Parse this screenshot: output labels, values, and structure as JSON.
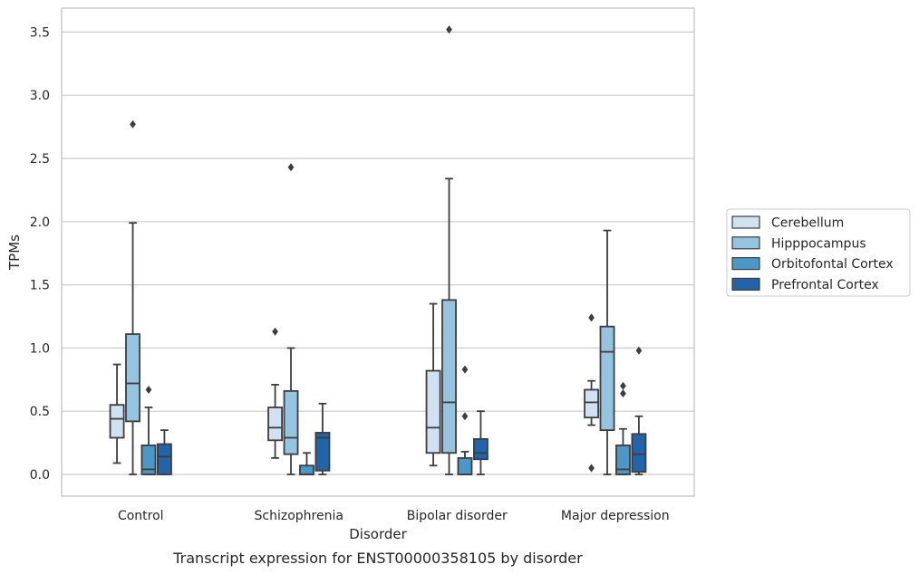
{
  "chart_data": {
    "type": "box",
    "xlabel": "Disorder",
    "ylabel": "TPMs",
    "caption": "Transcript expression for ENST00000358105 by disorder",
    "ylim": [
      -0.17,
      3.7
    ],
    "yticks": [
      "0.0",
      "0.5",
      "1.0",
      "1.5",
      "2.0",
      "2.5",
      "3.0",
      "3.5"
    ],
    "grid": "horizontal",
    "legend_position": "right",
    "categories": [
      "Control",
      "Schizophrenia",
      "Bipolar disorder",
      "Major depression"
    ],
    "series": [
      {
        "name": "Cerebellum",
        "color": "#d0e1f2",
        "boxes": [
          {
            "whislo": 0.09,
            "q1": 0.29,
            "med": 0.44,
            "q3": 0.55,
            "whishi": 0.87,
            "fliers": []
          },
          {
            "whislo": 0.13,
            "q1": 0.27,
            "med": 0.37,
            "q3": 0.53,
            "whishi": 0.71,
            "fliers": [
              1.13
            ]
          },
          {
            "whislo": 0.07,
            "q1": 0.17,
            "med": 0.37,
            "q3": 0.82,
            "whishi": 1.35,
            "fliers": []
          },
          {
            "whislo": 0.39,
            "q1": 0.45,
            "med": 0.57,
            "q3": 0.67,
            "whishi": 0.74,
            "fliers": [
              1.24,
              0.05
            ]
          }
        ]
      },
      {
        "name": "Hipppocampus",
        "color": "#94c4df",
        "boxes": [
          {
            "whislo": 0.0,
            "q1": 0.42,
            "med": 0.72,
            "q3": 1.11,
            "whishi": 1.99,
            "fliers": [
              2.77
            ]
          },
          {
            "whislo": 0.0,
            "q1": 0.16,
            "med": 0.29,
            "q3": 0.66,
            "whishi": 1.0,
            "fliers": [
              2.43
            ]
          },
          {
            "whislo": 0.0,
            "q1": 0.17,
            "med": 0.57,
            "q3": 1.38,
            "whishi": 2.34,
            "fliers": [
              3.52
            ]
          },
          {
            "whislo": 0.0,
            "q1": 0.35,
            "med": 0.97,
            "q3": 1.17,
            "whishi": 1.93,
            "fliers": []
          }
        ]
      },
      {
        "name": "Orbitofontal Cortex",
        "color": "#4a98c9",
        "boxes": [
          {
            "whislo": 0.0,
            "q1": 0.0,
            "med": 0.04,
            "q3": 0.23,
            "whishi": 0.53,
            "fliers": [
              0.67
            ]
          },
          {
            "whislo": 0.0,
            "q1": 0.0,
            "med": 0.0,
            "q3": 0.07,
            "whishi": 0.17,
            "fliers": []
          },
          {
            "whislo": 0.0,
            "q1": 0.0,
            "med": 0.0,
            "q3": 0.13,
            "whishi": 0.18,
            "fliers": [
              0.83,
              0.46
            ]
          },
          {
            "whislo": 0.0,
            "q1": 0.0,
            "med": 0.04,
            "q3": 0.23,
            "whishi": 0.36,
            "fliers": [
              0.7,
              0.64
            ]
          }
        ]
      },
      {
        "name": "Prefrontal Cortex",
        "color": "#2164ab",
        "boxes": [
          {
            "whislo": 0.0,
            "q1": 0.0,
            "med": 0.14,
            "q3": 0.24,
            "whishi": 0.35,
            "fliers": []
          },
          {
            "whislo": 0.0,
            "q1": 0.03,
            "med": 0.29,
            "q3": 0.33,
            "whishi": 0.56,
            "fliers": []
          },
          {
            "whislo": 0.0,
            "q1": 0.12,
            "med": 0.17,
            "q3": 0.28,
            "whishi": 0.5,
            "fliers": []
          },
          {
            "whislo": 0.0,
            "q1": 0.02,
            "med": 0.16,
            "q3": 0.32,
            "whishi": 0.46,
            "fliers": [
              0.98
            ]
          }
        ]
      }
    ]
  }
}
